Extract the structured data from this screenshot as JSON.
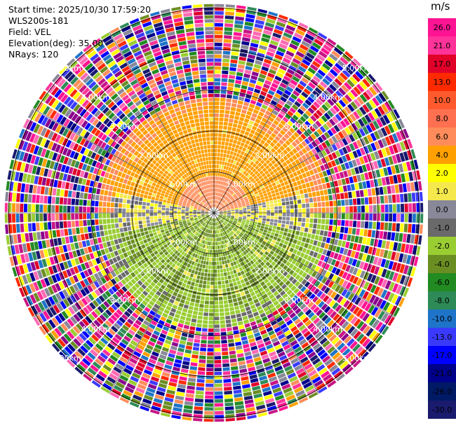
{
  "info": {
    "start_time": "Start time: 2025/10/30 17:59:20",
    "site": "WLS200s-181",
    "field": "Field: VEL",
    "elevation": "Elevation(deg): 35.00",
    "nrays": "NRays: 120"
  },
  "colorbar": {
    "unit": "m/s",
    "ticks": [
      "26.0",
      "21.0",
      "17.0",
      "13.0",
      "10.0",
      "8.0",
      "6.0",
      "4.0",
      "2.0",
      "1.0",
      "0.0",
      "-1.0",
      "-2.0",
      "-4.0",
      "-6.0",
      "-8.0",
      "-10.0",
      "-13.0",
      "-17.0",
      "-21.0",
      "-26.0",
      "-30.0"
    ],
    "colors": [
      "#ff1493",
      "#ff3399",
      "#e0002a",
      "#ff2a00",
      "#ff5a2d",
      "#ff7050",
      "#ff8c5a",
      "#ffa000",
      "#ffff00",
      "#f4e84c",
      "#888899",
      "#6a6a6a",
      "#9acd32",
      "#6b8e23",
      "#228b22",
      "#2e8b57",
      "#1e74c8",
      "#3a3aff",
      "#0000ff",
      "#00008b",
      "#001a66",
      "#1a1a6e"
    ]
  },
  "chart_data": {
    "type": "heatmap",
    "projection": "polar PPI",
    "field": "VEL",
    "units": "m/s",
    "nrays": 120,
    "elevation_deg": 35.0,
    "range_rings_km": [
      1.0,
      2.0,
      3.0,
      4.0,
      5.0
    ],
    "ring_labels": [
      "1.00km",
      "2.00km",
      "3.00km",
      "4.00km",
      "5.00km"
    ],
    "max_range_km": 5.1,
    "clean_echo_range_km": 2.5,
    "velocity_pattern": {
      "north_sector": "positive 2 to 4 m/s",
      "south_sector": "negative -2 to -6 m/s",
      "near_center_north": "4 to 6 m/s",
      "beyond_clean_range": "noise, full scale -30 to 26 m/s"
    },
    "colorbar_range": [
      -30.0,
      26.0
    ]
  }
}
